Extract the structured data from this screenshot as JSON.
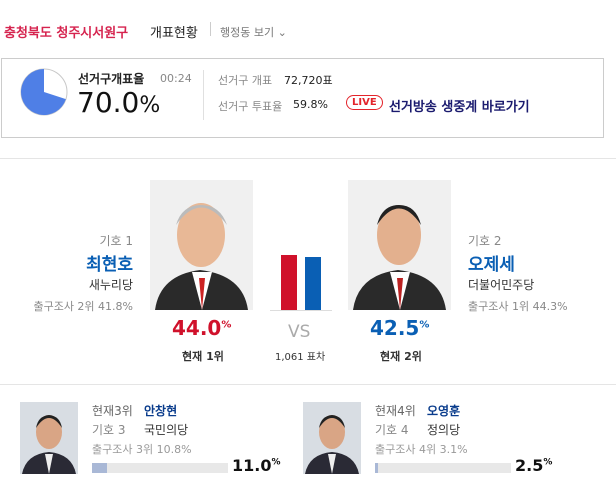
{
  "header": {
    "region": "충청북도 청주시서원구",
    "title": "개표현황",
    "view": "행정동 보기"
  },
  "summary": {
    "label": "선거구개표율",
    "time": "00:24",
    "rate": "70.0",
    "unit": "%",
    "pie_color": "#4f7fe6",
    "count_label": "선거구 개표",
    "count": "72,720표",
    "turnout_label": "선거구 투표율",
    "turnout": "59.8%",
    "live": "LIVE",
    "broadcast": "선거방송 생중계 바로가기"
  },
  "main": {
    "candidates": [
      {
        "number": "기호 1",
        "name": "최현호",
        "party": "새누리당",
        "exit_poll": "출구조사 2위 41.8%",
        "share": "44.0",
        "unit": "%",
        "rank": "현재 1위",
        "color": "#d0112b"
      },
      {
        "number": "기호 2",
        "name": "오제세",
        "party": "더불어민주당",
        "exit_poll": "출구조사 1위 44.3%",
        "share": "42.5",
        "unit": "%",
        "rank": "현재 2위",
        "color": "#0a5fb4"
      }
    ],
    "vs": "VS",
    "margin": "1,061 표차"
  },
  "others": [
    {
      "rank": "현재3위",
      "name": "안창현",
      "number": "기호 3",
      "party": "국민의당",
      "exit_poll": "출구조사 3위 10.8%",
      "share": "11.0",
      "unit": "%"
    },
    {
      "rank": "현재4위",
      "name": "오영훈",
      "number": "기호 4",
      "party": "정의당",
      "exit_poll": "출구조사 4위 3.1%",
      "share": "2.5",
      "unit": "%"
    }
  ]
}
